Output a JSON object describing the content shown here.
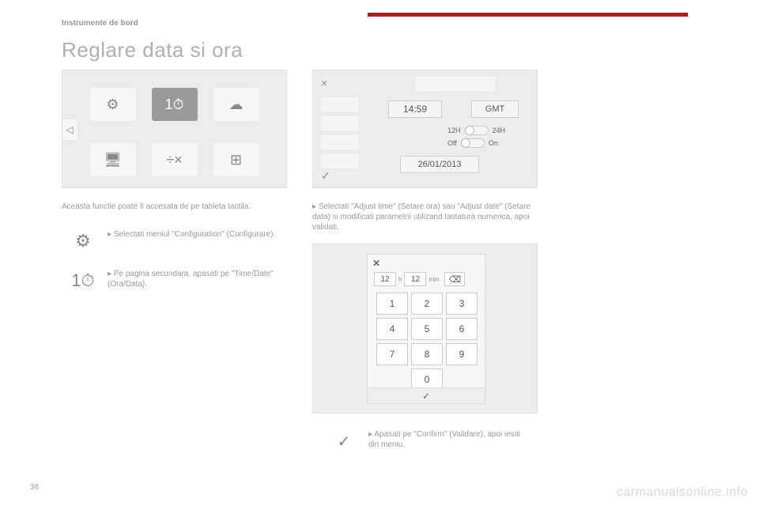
{
  "header": {
    "section": "Instrumente de bord",
    "title": "Reglare data si ora"
  },
  "panel1": {
    "side_arrow": "◁",
    "tiles_top": [
      "⚙",
      "1⏱",
      "☁"
    ],
    "tiles_bot": [
      "🖥",
      "÷×",
      "⊞"
    ],
    "selected_index": 1
  },
  "panel2": {
    "close": "×",
    "time": "14:59",
    "timezone": "GMT",
    "toggle1_left": "12H",
    "toggle1_right": "24H",
    "toggle2_left": "Off",
    "toggle2_right": "On",
    "date": "26/01/2013",
    "check": "✓"
  },
  "panel3": {
    "close": "✕",
    "hour_val": "12",
    "hour_unit": "h",
    "min_val": "12",
    "min_unit": "min",
    "backspace": "⌫",
    "keys": [
      "1",
      "2",
      "3",
      "4",
      "5",
      "6",
      "7",
      "8",
      "9",
      "0"
    ],
    "confirm": "✓"
  },
  "text": {
    "intro": "Aceasta functie poate fi accesata de pe tableta tactila.",
    "bullet1": "Selectati meniul \"Configuration\" (Configurare).",
    "bullet2": "Pe pagina secundara, apasati pe \"Time/Date\" (Ora/Data).",
    "bullet3": "Selectati \"Adjust time\" (Setare ora) sau \"Adjust date\" (Setare data) si modificati parametrii utilizand tastatura numerica, apoi validati.",
    "bullet4": "Apasati pe \"Confirm\" (Validare), apoi iesiti din meniu."
  },
  "icons": {
    "gear": "⚙",
    "clock": "1⏱",
    "check": "✓"
  },
  "footer": {
    "page": "38",
    "watermark": "carmanualsonline.info"
  },
  "colors": {
    "accent": "#b01c25",
    "text_muted": "#999999",
    "panel_bg": "#ececec"
  }
}
